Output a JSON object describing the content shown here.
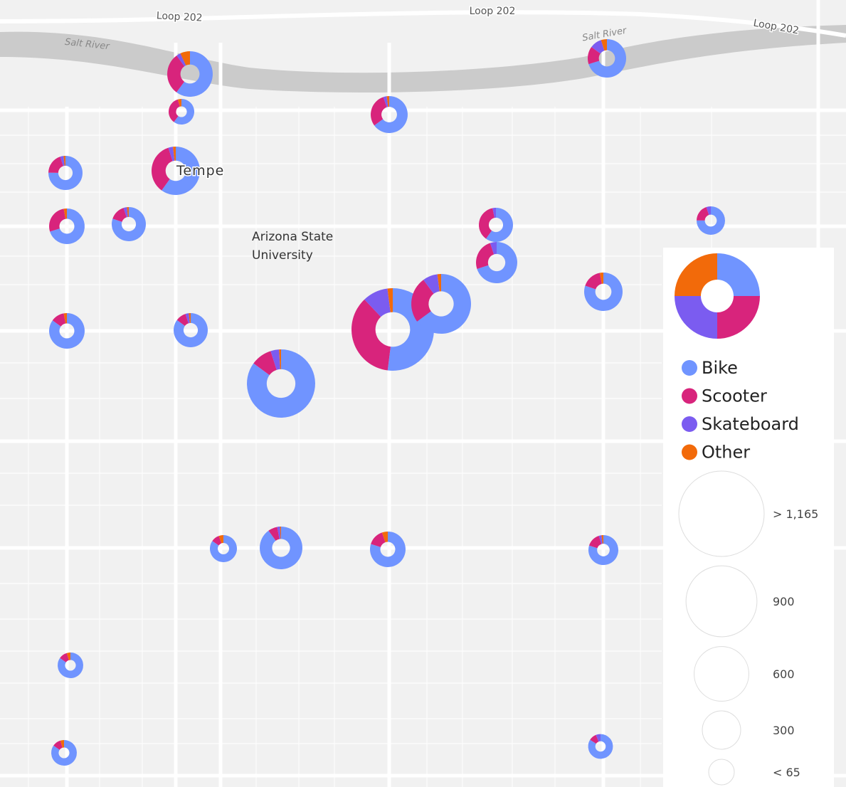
{
  "map": {
    "labels": {
      "roads": [
        "Loop 202",
        "Loop 202",
        "Loop 202"
      ],
      "rivers": [
        "Salt River",
        "Salt River"
      ],
      "city": "Tempe",
      "campus": [
        "Arizona State",
        "University"
      ]
    }
  },
  "chart_data": {
    "type": "donut",
    "series": [
      {
        "name": "Bike",
        "color": "#7094ff",
        "values": [
          259,
          39,
          178,
          211,
          290,
          167,
          174,
          178,
          133,
          247,
          88,
          241,
          578,
          450,
          211,
          189,
          723,
          77,
          341,
          198,
          115,
          55,
          55,
          42
        ]
      },
      {
        "name": "Scooter",
        "color": "#d8247c",
        "values": [
          129,
          23,
          82,
          45,
          170,
          44,
          67,
          33,
          82,
          88,
          23,
          51,
          400,
          173,
          30,
          22,
          85,
          9,
          27,
          37,
          22,
          7,
          7,
          5
        ]
      },
      {
        "name": "Skateboard",
        "color": "#7b5cf0",
        "values": [
          13,
          0,
          8,
          30,
          15,
          7,
          0,
          7,
          7,
          18,
          6,
          0,
          111,
          56,
          0,
          7,
          34,
          0,
          8,
          0,
          4,
          0,
          0,
          3
        ]
      },
      {
        "name": "Other",
        "color": "#f26a0a",
        "values": [
          30,
          3,
          6,
          15,
          9,
          4,
          7,
          4,
          0,
          0,
          0,
          9,
          23,
          14,
          7,
          4,
          8,
          5,
          3,
          13,
          3,
          3,
          3,
          0
        ]
      }
    ],
    "size_legend": {
      "ticks": [
        {
          "value": 1165,
          "label": "> 1,165"
        },
        900,
        600,
        300,
        {
          "value": 65,
          "label": "< 65"
        }
      ]
    }
  }
}
